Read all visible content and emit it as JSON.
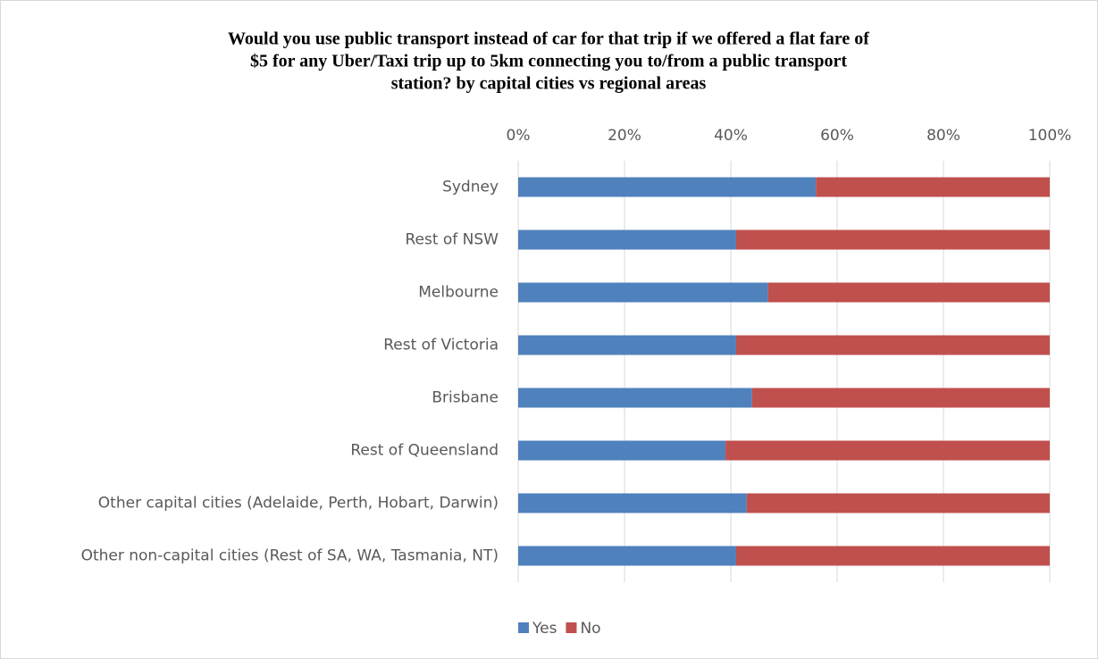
{
  "chart_data": {
    "type": "stacked_barh",
    "title": [
      "Would you use public transport instead of car for that trip if we offered a flat fare of",
      "$5 for any Uber/Taxi trip up to 5km connecting you to/from a public transport",
      "station? by capital cities vs regional areas"
    ],
    "categories": [
      "Sydney",
      "Rest of NSW",
      "Melbourne",
      "Rest of Victoria",
      "Brisbane",
      "Rest of Queensland",
      "Other capital cities (Adelaide, Perth, Hobart, Darwin)",
      "Other non-capital cities (Rest of SA, WA, Tasmania, NT)"
    ],
    "series": [
      {
        "name": "Yes",
        "color": "#4f81bd",
        "values": [
          56,
          41,
          47,
          41,
          44,
          39,
          43,
          41
        ]
      },
      {
        "name": "No",
        "color": "#c0504d",
        "values": [
          44,
          59,
          53,
          59,
          56,
          61,
          57,
          59
        ]
      }
    ],
    "xlim": [
      0,
      100
    ],
    "xticks": [
      {
        "value": 0,
        "label": "0%"
      },
      {
        "value": 20,
        "label": "20%"
      },
      {
        "value": 40,
        "label": "40%"
      },
      {
        "value": 60,
        "label": "60%"
      },
      {
        "value": 80,
        "label": "80%"
      },
      {
        "value": 100,
        "label": "100%"
      }
    ],
    "grid": true,
    "legend": "bottom"
  }
}
